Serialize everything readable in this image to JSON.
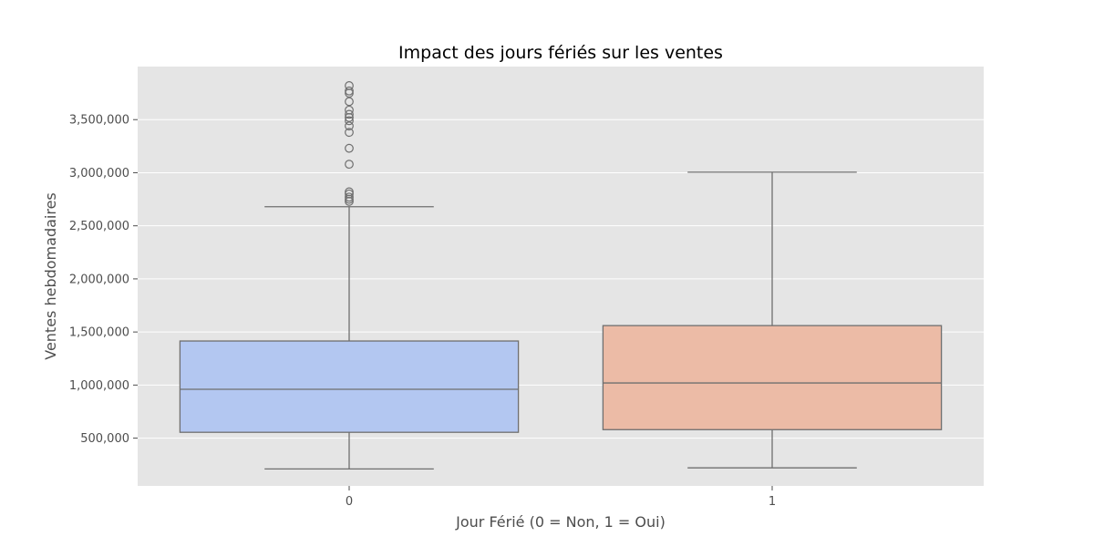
{
  "chart_data": {
    "type": "box",
    "title": "Impact des jours fériés sur les ventes",
    "xlabel": "Jour Férié (0 = Non, 1 = Oui)",
    "ylabel": "Ventes hebdomadaires",
    "categories": [
      "0",
      "1"
    ],
    "ylim": [
      50000,
      4000000
    ],
    "yticks": [
      500000,
      1000000,
      1500000,
      2000000,
      2500000,
      3000000,
      3500000
    ],
    "ytick_labels": [
      "500,000",
      "1,000,000",
      "1,500,000",
      "2,000,000",
      "2,500,000",
      "3,000,000",
      "3,500,000"
    ],
    "grid": true,
    "series": [
      {
        "category": "0",
        "whisker_low": 210000,
        "q1": 555000,
        "median": 960000,
        "q3": 1415000,
        "whisker_high": 2680000,
        "outliers": [
          2730000,
          2750000,
          2770000,
          2800000,
          2820000,
          3080000,
          3230000,
          3380000,
          3440000,
          3490000,
          3520000,
          3550000,
          3590000,
          3670000,
          3750000,
          3770000,
          3820000
        ],
        "color": "#b3c7f1"
      },
      {
        "category": "1",
        "whisker_low": 220000,
        "q1": 580000,
        "median": 1020000,
        "q3": 1560000,
        "whisker_high": 3005000,
        "outliers": [],
        "color": "#ecbba6"
      }
    ]
  },
  "colors": {
    "plot_background": "#e5e5e5",
    "grid": "#ffffff",
    "box_edge": "#6f6f6f"
  }
}
